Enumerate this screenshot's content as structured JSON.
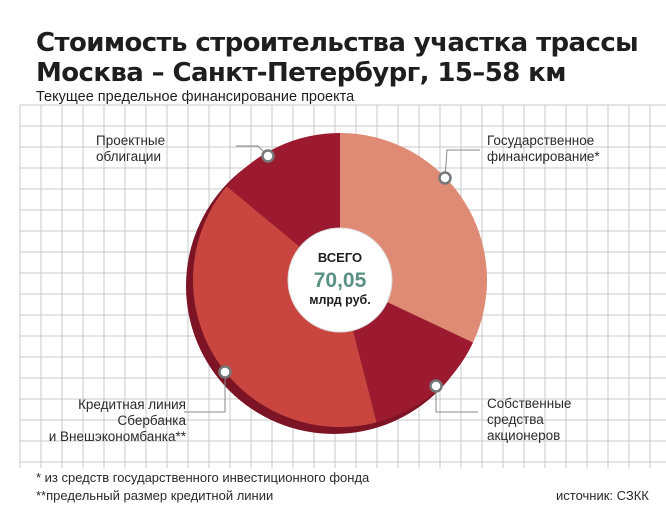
{
  "title_line1": "Стоимость строительства участка трассы",
  "title_line2": "Москва – Санкт-Петербург, 15–58 км",
  "subtitle": "Текущее предельное финансирование проекта",
  "center": {
    "label": "ВСЕГО",
    "value": "70,05",
    "unit": "млрд руб."
  },
  "labels": {
    "bonds": [
      "Проектные",
      "облигации"
    ],
    "state": [
      "Государственное",
      "финансирование*"
    ],
    "shareholders": [
      "Собственные",
      "средства",
      "акционеров"
    ],
    "credit": [
      "Кредитная линия",
      "Сбербанка",
      "и Внешэкономбанка**"
    ]
  },
  "footnote1": "* из средств государственного инвестиционного фонда",
  "footnote2": "**предельный размер кредитной линии",
  "source": "источник: СЗКК",
  "colors": {
    "state": "#de8a74",
    "shareholders": "#9b1a2f",
    "credit": "#c8463f",
    "bonds": "#9b1a2f",
    "center_value": "#5a9180",
    "grid": "#c9c9c9"
  },
  "chart_data": {
    "type": "pie",
    "title": "Стоимость строительства участка трассы Москва – Санкт-Петербург, 15–58 км",
    "subtitle": "Текущее предельное финансирование проекта",
    "unit": "млрд руб.",
    "total": 70.05,
    "slices": [
      {
        "label": "Государственное финансирование*",
        "share": 0.32
      },
      {
        "label": "Собственные средства акционеров",
        "share": 0.14
      },
      {
        "label": "Кредитная линия Сбербанка и Внешэкономбанка**",
        "share": 0.4
      },
      {
        "label": "Проектные облигации",
        "share": 0.14
      }
    ]
  }
}
